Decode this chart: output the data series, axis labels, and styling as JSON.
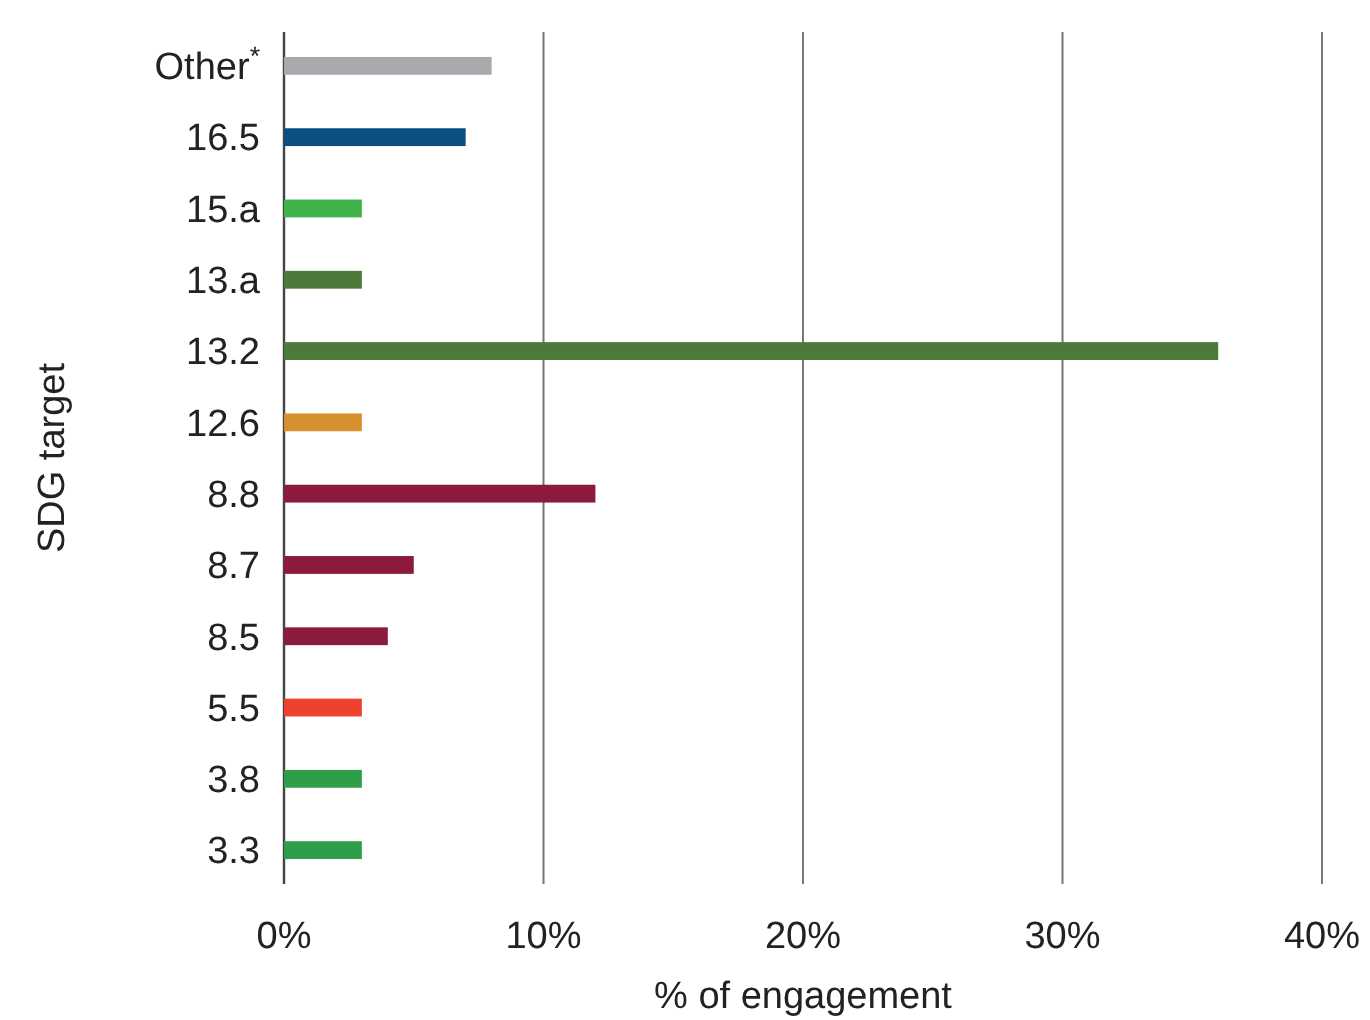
{
  "chart_data": {
    "type": "bar",
    "orientation": "horizontal",
    "xlabel": "% of engagement",
    "ylabel": "SDG target",
    "categories": [
      "Other$^{*}$",
      "16.5",
      "15.a",
      "13.a",
      "13.2",
      "12.6",
      "8.8",
      "8.7",
      "8.5",
      "5.5",
      "3.8",
      "3.3"
    ],
    "values": [
      8,
      7,
      3,
      3,
      36,
      3,
      12,
      5,
      4,
      3,
      3,
      3
    ],
    "colors": [
      "#a7a9ac",
      "#0b4f82",
      "#3fb24a",
      "#4b7a3b",
      "#4b7a3b",
      "#d6902f",
      "#8c1a3c",
      "#8c1a3c",
      "#8c1a3c",
      "#ee4130",
      "#2f9e4a",
      "#2f9e4a"
    ],
    "xlim": [
      0,
      40
    ],
    "xticks": [
      {
        "value": 0,
        "label": "0%"
      },
      {
        "value": 10,
        "label": "10%"
      },
      {
        "value": 20,
        "label": "20%"
      },
      {
        "value": 30,
        "label": "30%"
      },
      {
        "value": 40,
        "label": "40%"
      }
    ],
    "grid": "x"
  }
}
